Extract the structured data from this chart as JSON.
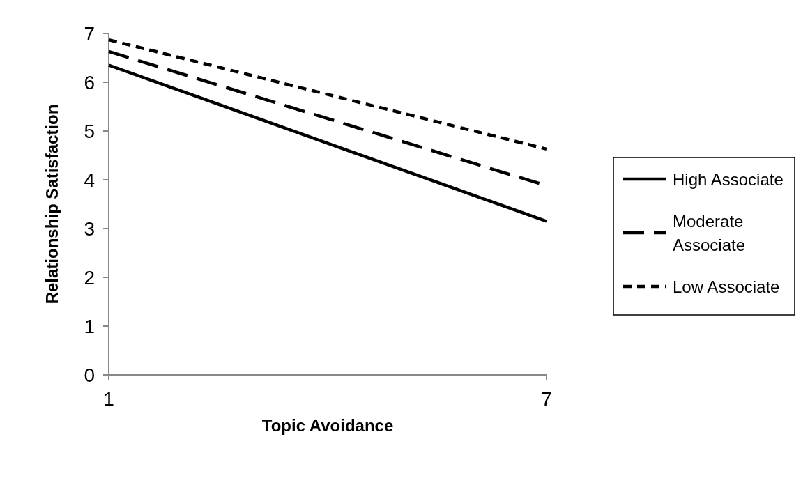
{
  "chart_data": {
    "type": "line",
    "xlabel": "Topic Avoidance",
    "ylabel": "Relationship Satisfaction",
    "x": [
      1,
      7
    ],
    "series": [
      {
        "name": "High Associate",
        "color": "#000000",
        "values": [
          6.35,
          3.15
        ],
        "line_style": "solid"
      },
      {
        "name": "Moderate Associate",
        "color": "#000000",
        "values": [
          6.63,
          3.88
        ],
        "line_style": "dashed"
      },
      {
        "name": "Low Associate",
        "color": "#000000",
        "values": [
          6.87,
          4.63
        ],
        "line_style": "dotted"
      }
    ],
    "xlim": [
      1,
      7
    ],
    "xticks": [
      1,
      7
    ],
    "ylim": [
      0,
      7
    ],
    "yticks": [
      0,
      1,
      2,
      3,
      4,
      5,
      6,
      7
    ],
    "grid": false,
    "legend": "right",
    "marker": "none"
  }
}
